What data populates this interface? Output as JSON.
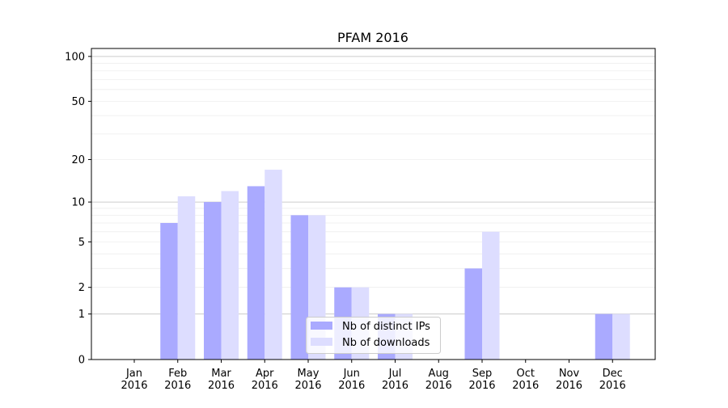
{
  "chart_data": {
    "type": "bar",
    "title": "PFAM 2016",
    "xlabel": "",
    "ylabel": "",
    "yscale": "symlog (log10(1+y))",
    "ylim": [
      0,
      113
    ],
    "yticks": [
      0,
      1,
      2,
      5,
      10,
      20,
      50,
      100
    ],
    "grid": true,
    "legend": "lower center",
    "categories": [
      "Jan\n2016",
      "Feb\n2016",
      "Mar\n2016",
      "Apr\n2016",
      "May\n2016",
      "Jun\n2016",
      "Jul\n2016",
      "Aug\n2016",
      "Sep\n2016",
      "Oct\n2016",
      "Nov\n2016",
      "Dec\n2016"
    ],
    "series": [
      {
        "name": "Nb of distinct IPs",
        "color": "#aaaaff",
        "values": [
          0,
          7,
          10,
          13,
          8,
          2,
          1,
          0,
          3,
          0,
          0,
          1
        ]
      },
      {
        "name": "Nb of downloads",
        "color": "#ddddff",
        "values": [
          0,
          11,
          12,
          17,
          8,
          2,
          1,
          0,
          6,
          0,
          0,
          1
        ]
      }
    ]
  }
}
